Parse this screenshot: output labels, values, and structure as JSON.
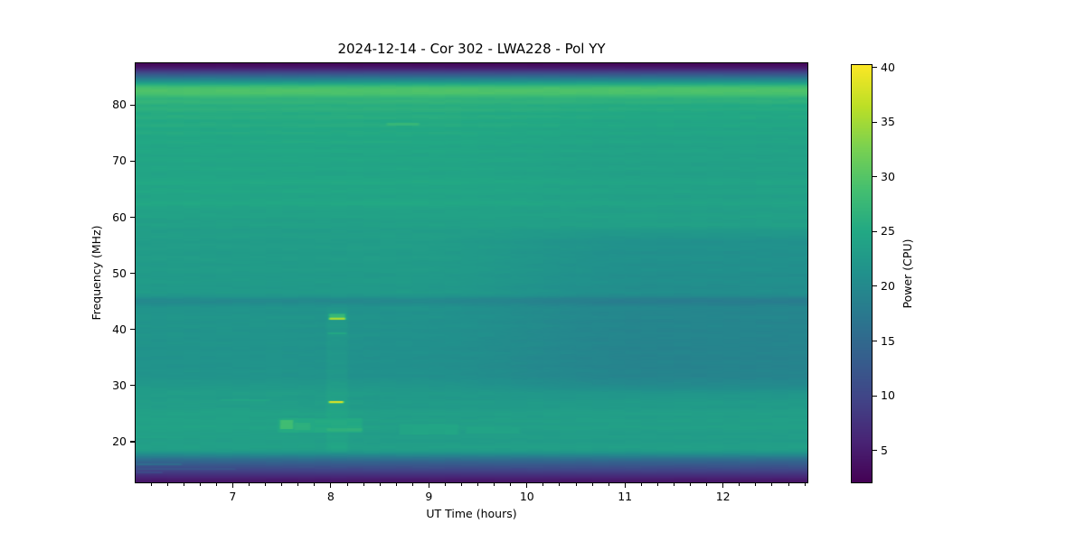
{
  "chart_data": {
    "type": "heatmap",
    "title": "2024-12-14 - Cor 302 - LWA228 - Pol YY",
    "xlabel": "UT Time (hours)",
    "ylabel": "Frequency (MHz)",
    "x_range": [
      6.0,
      12.87
    ],
    "y_range": [
      12.6,
      87.6
    ],
    "x_ticks": [
      7,
      8,
      9,
      10,
      11,
      12
    ],
    "x_minor_step_hours": 0.1666667,
    "y_ticks": [
      20,
      30,
      40,
      50,
      60,
      70,
      80
    ],
    "grid": false,
    "colorbar": {
      "label": "Power (CPU)",
      "vmin": 2.0,
      "vmax": 40.3,
      "ticks": [
        5,
        10,
        15,
        20,
        25,
        30,
        35,
        40
      ],
      "colormap": "viridis",
      "position": "right"
    },
    "colormap_stops": [
      [
        0.0,
        "#440154"
      ],
      [
        0.1,
        "#482475"
      ],
      [
        0.2,
        "#414487"
      ],
      [
        0.3,
        "#355f8d"
      ],
      [
        0.4,
        "#2a788e"
      ],
      [
        0.5,
        "#21918c"
      ],
      [
        0.6,
        "#22a884"
      ],
      [
        0.7,
        "#44bf70"
      ],
      [
        0.8,
        "#7ad151"
      ],
      [
        0.9,
        "#bddf26"
      ],
      [
        1.0,
        "#fde725"
      ]
    ],
    "background_profile_mhz_power": [
      [
        87.6,
        2.6
      ],
      [
        87.1,
        3.2
      ],
      [
        86.5,
        5.5
      ],
      [
        85.9,
        9.5
      ],
      [
        85.3,
        13.5
      ],
      [
        84.7,
        18.0
      ],
      [
        84.1,
        22.0
      ],
      [
        83.6,
        26.0
      ],
      [
        83.1,
        28.8
      ],
      [
        82.6,
        29.6
      ],
      [
        82.0,
        29.3
      ],
      [
        81.6,
        28.0
      ],
      [
        81.1,
        26.6
      ],
      [
        80.5,
        27.0
      ],
      [
        79.9,
        25.7
      ],
      [
        79.2,
        26.4
      ],
      [
        78.5,
        25.3
      ],
      [
        77.8,
        25.9
      ],
      [
        77.1,
        25.1
      ],
      [
        76.4,
        25.7
      ],
      [
        75.7,
        24.8
      ],
      [
        75.0,
        25.4
      ],
      [
        74.2,
        24.6
      ],
      [
        73.4,
        25.2
      ],
      [
        72.6,
        24.4
      ],
      [
        71.8,
        25.0
      ],
      [
        71.0,
        24.3
      ],
      [
        70.2,
        24.9
      ],
      [
        69.4,
        24.2
      ],
      [
        68.6,
        24.8
      ],
      [
        67.8,
        24.1
      ],
      [
        67.0,
        24.6
      ],
      [
        66.2,
        25.2
      ],
      [
        65.4,
        24.3
      ],
      [
        64.6,
        24.9
      ],
      [
        63.8,
        24.1
      ],
      [
        63.0,
        24.6
      ],
      [
        62.4,
        25.1
      ],
      [
        61.8,
        24.2
      ],
      [
        61.0,
        23.8
      ],
      [
        60.2,
        24.1
      ],
      [
        59.4,
        23.4
      ],
      [
        58.6,
        23.8
      ],
      [
        57.6,
        23.1
      ],
      [
        56.6,
        23.5
      ],
      [
        55.6,
        22.9
      ],
      [
        54.6,
        23.3
      ],
      [
        53.6,
        22.8
      ],
      [
        52.6,
        23.2
      ],
      [
        51.6,
        22.7
      ],
      [
        50.6,
        23.1
      ],
      [
        49.6,
        22.5
      ],
      [
        48.6,
        22.9
      ],
      [
        47.6,
        22.4
      ],
      [
        46.6,
        22.8
      ],
      [
        45.9,
        21.7
      ],
      [
        45.4,
        20.2
      ],
      [
        44.9,
        19.9
      ],
      [
        44.4,
        20.7
      ],
      [
        43.8,
        21.6
      ],
      [
        43.0,
        21.2
      ],
      [
        42.2,
        21.6
      ],
      [
        41.4,
        21.1
      ],
      [
        40.6,
        21.5
      ],
      [
        39.8,
        21.0
      ],
      [
        39.0,
        21.4
      ],
      [
        38.2,
        21.0
      ],
      [
        37.4,
        21.3
      ],
      [
        36.6,
        20.9
      ],
      [
        35.8,
        21.3
      ],
      [
        35.0,
        20.9
      ],
      [
        34.2,
        21.2
      ],
      [
        33.4,
        20.9
      ],
      [
        32.6,
        21.3
      ],
      [
        31.8,
        21.0
      ],
      [
        31.0,
        21.5
      ],
      [
        30.2,
        21.9
      ],
      [
        29.4,
        22.3
      ],
      [
        28.6,
        22.8
      ],
      [
        27.8,
        22.4
      ],
      [
        27.0,
        22.9
      ],
      [
        26.2,
        22.6
      ],
      [
        25.6,
        23.2
      ],
      [
        25.0,
        23.6
      ],
      [
        24.4,
        23.1
      ],
      [
        23.8,
        23.7
      ],
      [
        23.2,
        23.2
      ],
      [
        22.6,
        23.8
      ],
      [
        22.0,
        23.3
      ],
      [
        21.4,
        23.0
      ],
      [
        20.8,
        23.4
      ],
      [
        20.2,
        22.9
      ],
      [
        19.6,
        23.3
      ],
      [
        19.0,
        23.6
      ],
      [
        18.4,
        23.0
      ],
      [
        18.0,
        21.5
      ],
      [
        17.5,
        19.0
      ],
      [
        17.0,
        16.5
      ],
      [
        16.5,
        14.5
      ],
      [
        16.0,
        13.0
      ],
      [
        15.5,
        11.5
      ],
      [
        15.0,
        10.0
      ],
      [
        14.5,
        8.5
      ],
      [
        14.0,
        7.0
      ],
      [
        13.5,
        5.5
      ],
      [
        13.0,
        4.5
      ],
      [
        12.6,
        3.8
      ]
    ],
    "time_effects": [
      {
        "name": "right-side-dimming-mid",
        "f": [
          27,
          59
        ],
        "t": [
          8.7,
          11.3
        ],
        "direction": "increase",
        "delta": -1.9
      },
      {
        "name": "right-side-dimming-high",
        "f": [
          59,
          83
        ],
        "t": [
          8.7,
          11.5
        ],
        "direction": "increase",
        "delta": -0.7
      },
      {
        "name": "left-side-greener-low",
        "f": [
          17.5,
          45
        ],
        "t": [
          7.3,
          8.8
        ],
        "direction": "decrease",
        "delta": 0.5
      }
    ],
    "features": [
      {
        "name": "burst-8h-42MHz-bright",
        "mode": "max",
        "t": [
          7.96,
          8.17
        ],
        "f": [
          41.65,
          42.2
        ],
        "power": 35.5
      },
      {
        "name": "burst-8h-42MHz-green",
        "mode": "max",
        "t": [
          7.96,
          8.17
        ],
        "f": [
          42.2,
          42.85
        ],
        "power": 27.5
      },
      {
        "name": "burst-8h-39MHz-faint",
        "mode": "max",
        "t": [
          7.95,
          8.18
        ],
        "f": [
          39.1,
          39.5
        ],
        "power": 24.6
      },
      {
        "name": "burst-8h-27MHz-yellow",
        "mode": "max",
        "t": [
          7.96,
          8.15
        ],
        "f": [
          26.8,
          27.3
        ],
        "power": 38.5
      },
      {
        "name": "blob-23MHz-core",
        "mode": "max",
        "t": [
          7.46,
          7.64
        ],
        "f": [
          22.2,
          23.9
        ],
        "power": 28.4
      },
      {
        "name": "blob-23MHz-mid",
        "mode": "max",
        "t": [
          7.6,
          7.82
        ],
        "f": [
          22.0,
          23.5
        ],
        "power": 26.3
      },
      {
        "name": "blob-23MHz-wide",
        "mode": "max",
        "t": [
          7.44,
          8.34
        ],
        "f": [
          21.6,
          24.2
        ],
        "power": 25.2
      },
      {
        "name": "line-22MHz",
        "mode": "max",
        "t": [
          7.94,
          8.34
        ],
        "f": [
          21.8,
          22.45
        ],
        "power": 26.4
      },
      {
        "name": "line-76MHz-faint",
        "mode": "max",
        "t": [
          8.55,
          8.92
        ],
        "f": [
          76.3,
          76.85
        ],
        "power": 27.3
      },
      {
        "name": "patch-22MHz-a",
        "mode": "max",
        "t": [
          8.68,
          9.32
        ],
        "f": [
          21.2,
          23.2
        ],
        "power": 24.5
      },
      {
        "name": "patch-22MHz-b",
        "mode": "max",
        "t": [
          9.36,
          9.95
        ],
        "f": [
          21.4,
          22.7
        ],
        "power": 24.2
      },
      {
        "name": "line-16MHz-left",
        "mode": "max",
        "t": [
          6.0,
          6.5
        ],
        "f": [
          15.75,
          16.15
        ],
        "power": 15.5
      },
      {
        "name": "line-15MHz-left",
        "mode": "max",
        "t": [
          6.0,
          7.05
        ],
        "f": [
          14.95,
          15.3
        ],
        "power": 12.5
      },
      {
        "name": "line-14.5MHz-left",
        "mode": "max",
        "t": [
          6.0,
          6.3
        ],
        "f": [
          14.35,
          14.7
        ],
        "power": 10.5
      },
      {
        "name": "line-27.5MHz-left",
        "mode": "max",
        "t": [
          6.85,
          7.4
        ],
        "f": [
          27.25,
          27.6
        ],
        "power": 24.3
      },
      {
        "name": "column-8h-brightening",
        "mode": "add",
        "t": [
          7.93,
          8.2
        ],
        "f": [
          17.5,
          44.5
        ],
        "delta": 0.8
      }
    ]
  },
  "figure": {
    "background_color": "#ffffff",
    "text_color": "#000000"
  }
}
